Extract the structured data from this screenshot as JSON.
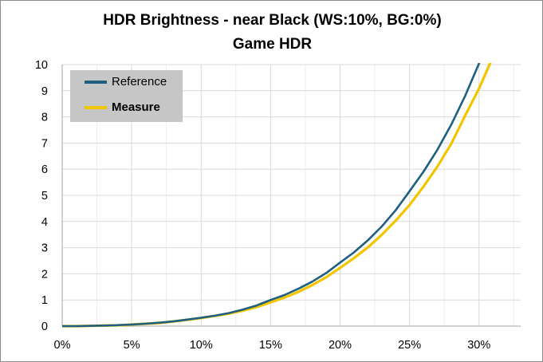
{
  "chart_data": {
    "type": "line",
    "title": "HDR Brightness - near Black (WS:10%, BG:0%)",
    "subtitle": "Game HDR",
    "xlabel": "",
    "ylabel": "",
    "xlim": [
      0,
      33
    ],
    "ylim": [
      0,
      10
    ],
    "x_ticks": [
      "0%",
      "5%",
      "10%",
      "15%",
      "20%",
      "25%",
      "30%"
    ],
    "x_tick_values": [
      0,
      5,
      10,
      15,
      20,
      25,
      30
    ],
    "y_ticks": [
      "0",
      "1",
      "2",
      "3",
      "4",
      "5",
      "6",
      "7",
      "8",
      "9",
      "10"
    ],
    "grid": true,
    "legend_position": "top-left",
    "x": [
      0,
      1,
      2,
      3,
      4,
      5,
      6,
      7,
      8,
      9,
      10,
      11,
      12,
      13,
      14,
      15,
      16,
      17,
      18,
      19,
      20,
      21,
      22,
      23,
      24,
      25,
      26,
      27,
      28,
      29,
      30,
      31
    ],
    "series": [
      {
        "name": "Reference",
        "color": "#1f5f7f",
        "values": [
          0,
          0.001,
          0.009,
          0.02,
          0.037,
          0.06,
          0.09,
          0.13,
          0.18,
          0.25,
          0.32,
          0.4,
          0.5,
          0.63,
          0.79,
          1.0,
          1.19,
          1.43,
          1.7,
          2.03,
          2.43,
          2.82,
          3.28,
          3.81,
          4.43,
          5.16,
          5.9,
          6.74,
          7.7,
          8.8,
          10.04,
          11.4
        ]
      },
      {
        "name": "Measure",
        "color": "#f2c500",
        "values": [
          0,
          0,
          0.01,
          0.02,
          0.03,
          0.06,
          0.09,
          0.12,
          0.18,
          0.24,
          0.31,
          0.39,
          0.48,
          0.59,
          0.73,
          0.91,
          1.09,
          1.31,
          1.57,
          1.87,
          2.23,
          2.6,
          3.01,
          3.49,
          4.03,
          4.63,
          5.33,
          6.1,
          6.97,
          8.05,
          9.08,
          10.3
        ]
      }
    ]
  }
}
